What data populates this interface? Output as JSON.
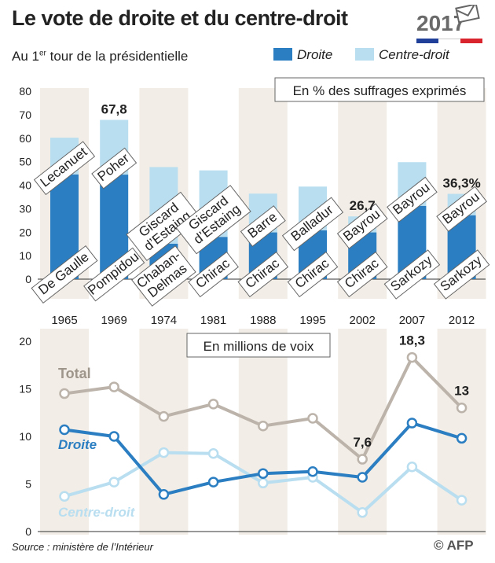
{
  "title": "Le vote de droite et du centre-droit",
  "subtitle_main": "Au 1",
  "subtitle_sup": "er",
  "subtitle_rest": " tour de la présidentielle",
  "year_badge": "2017",
  "legend": {
    "droite": "Droite",
    "centre": "Centre-droit"
  },
  "source": "Source : ministère de l’Intérieur",
  "credit": "© AFP",
  "colors": {
    "droite": "#2a7ec1",
    "centre": "#b8def0",
    "total": "#bcb4ab",
    "band": "#f2ede6"
  },
  "chart_data": [
    {
      "type": "bar",
      "stacked": true,
      "title": "En % des suffrages exprimés",
      "categories": [
        "1965",
        "1969",
        "1974",
        "1981",
        "1988",
        "1995",
        "2002",
        "2007",
        "2012"
      ],
      "ylim": [
        0,
        80
      ],
      "yticks": [
        0,
        10,
        20,
        30,
        40,
        50,
        60,
        70,
        80
      ],
      "series": [
        {
          "name": "Droite",
          "values": [
            44.6,
            44.5,
            15.1,
            18.0,
            19.9,
            20.8,
            19.9,
            31.2,
            27.2
          ],
          "candidates": [
            "De Gaulle",
            "Pompidou",
            "Chaban-Delmas",
            "Chirac",
            "Chirac",
            "Chirac",
            "Chirac",
            "Sarkozy",
            "Sarkozy"
          ]
        },
        {
          "name": "Centre-droit",
          "values": [
            15.6,
            23.3,
            32.6,
            28.3,
            16.5,
            18.6,
            6.8,
            18.6,
            9.1
          ],
          "candidates": [
            "Lecanuet",
            "Poher",
            "Giscard d’Estaing",
            "Giscard d’Estaing",
            "Barre",
            "Balladur",
            "Bayrou",
            "Bayrou",
            "Bayrou"
          ]
        }
      ],
      "annotations": [
        {
          "category": "1969",
          "text": "67,8"
        },
        {
          "category": "2002",
          "text": "26,7"
        },
        {
          "category": "2012",
          "text": "36,3%"
        }
      ]
    },
    {
      "type": "line",
      "title": "En millions de voix",
      "categories": [
        "1965",
        "1969",
        "1974",
        "1981",
        "1988",
        "1995",
        "2002",
        "2007",
        "2012"
      ],
      "ylim": [
        0,
        20
      ],
      "yticks": [
        0,
        5,
        10,
        15,
        20
      ],
      "series": [
        {
          "name": "Total",
          "values": [
            14.5,
            15.2,
            12.1,
            13.4,
            11.1,
            11.9,
            7.6,
            18.3,
            13.0
          ]
        },
        {
          "name": "Droite",
          "values": [
            10.7,
            10.0,
            3.9,
            5.2,
            6.1,
            6.3,
            5.7,
            11.4,
            9.8
          ]
        },
        {
          "name": "Centre-droit",
          "values": [
            3.7,
            5.2,
            8.3,
            8.2,
            5.1,
            5.7,
            2.0,
            6.8,
            3.3
          ]
        }
      ],
      "annotations": [
        {
          "category": "2002",
          "text": "7,6"
        },
        {
          "category": "2007",
          "text": "18,3"
        },
        {
          "category": "2012",
          "text": "13"
        }
      ]
    }
  ]
}
